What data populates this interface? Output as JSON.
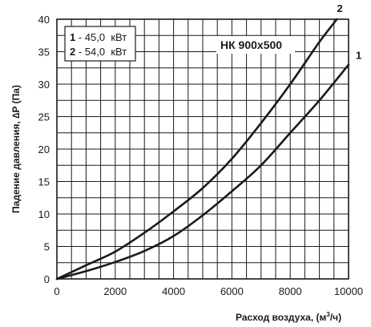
{
  "chart_data": {
    "type": "line",
    "xlabel_main": "Расход воздуха, (м",
    "xlabel_sup": "3",
    "xlabel_end": "/ч)",
    "ylabel": "Падение давления, ∆P (Па)",
    "annotation": "НК 900x500",
    "xlim": [
      0,
      10000
    ],
    "ylim": [
      0,
      40
    ],
    "x_ticks": [
      0,
      2000,
      4000,
      6000,
      8000,
      10000
    ],
    "y_ticks": [
      0,
      5,
      10,
      15,
      20,
      25,
      30,
      35,
      40
    ],
    "x_grid_step": 500,
    "y_grid_step": 2.5,
    "grid": true,
    "legend_placement": "top-left",
    "legend": [
      {
        "num": "1",
        "text": " - 45,0  кВт"
      },
      {
        "num": "2",
        "text": " - 54,0  кВт"
      }
    ],
    "series": [
      {
        "name": "1",
        "x": [
          0,
          1000,
          2000,
          3000,
          4000,
          5000,
          6000,
          7000,
          8000,
          9000,
          10000
        ],
        "y": [
          0,
          1.2,
          2.6,
          4.3,
          6.6,
          9.8,
          13.5,
          17.5,
          22.5,
          27.5,
          33
        ]
      },
      {
        "name": "2",
        "x": [
          0,
          1000,
          2000,
          3000,
          4000,
          5000,
          6000,
          7000,
          8000,
          9000,
          9600
        ],
        "y": [
          0,
          2.1,
          4.2,
          7.1,
          10.4,
          14.0,
          18.5,
          24.0,
          30.0,
          36.5,
          40
        ]
      }
    ]
  }
}
